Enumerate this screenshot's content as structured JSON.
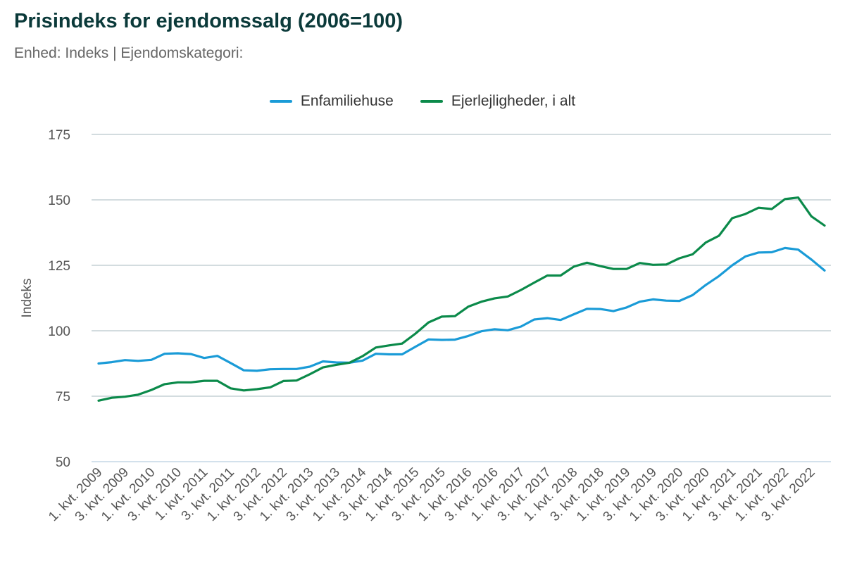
{
  "colors": {
    "enfamiliehuse": "#1a9bd7",
    "ejerlejligheder": "#0b8a4a",
    "grid": "#b9c6cc",
    "baseline": "#b9cfe0"
  },
  "chart_data": {
    "type": "line",
    "title": "Prisindeks for ejendomssalg (2006=100)",
    "subtitle": "Enhed: Indeks | Ejendomskategori:",
    "ylabel": "Indeks",
    "xlabel": "",
    "ylim": [
      50,
      175
    ],
    "yticks": [
      50,
      75,
      100,
      125,
      150,
      175
    ],
    "grid": true,
    "legend_position": "top-center",
    "categories": [
      "1. kvt. 2009",
      "2. kvt. 2009",
      "3. kvt. 2009",
      "4. kvt. 2009",
      "1. kvt. 2010",
      "2. kvt. 2010",
      "3. kvt. 2010",
      "4. kvt. 2010",
      "1. kvt. 2011",
      "2. kvt. 2011",
      "3. kvt. 2011",
      "4. kvt. 2011",
      "1. kvt. 2012",
      "2. kvt. 2012",
      "3. kvt. 2012",
      "4. kvt. 2012",
      "1. kvt. 2013",
      "2. kvt. 2013",
      "3. kvt. 2013",
      "4. kvt. 2013",
      "1. kvt. 2014",
      "2. kvt. 2014",
      "3. kvt. 2014",
      "4. kvt. 2014",
      "1. kvt. 2015",
      "2. kvt. 2015",
      "3. kvt. 2015",
      "4. kvt. 2015",
      "1. kvt. 2016",
      "2. kvt. 2016",
      "3. kvt. 2016",
      "4. kvt. 2016",
      "1. kvt. 2017",
      "2. kvt. 2017",
      "3. kvt. 2017",
      "4. kvt. 2017",
      "1. kvt. 2018",
      "2. kvt. 2018",
      "3. kvt. 2018",
      "4. kvt. 2018",
      "1. kvt. 2019",
      "2. kvt. 2019",
      "3. kvt. 2019",
      "4. kvt. 2019",
      "1. kvt. 2020",
      "2. kvt. 2020",
      "3. kvt. 2020",
      "4. kvt. 2020",
      "1. kvt. 2021",
      "2. kvt. 2021",
      "3. kvt. 2021",
      "4. kvt. 2021",
      "1. kvt. 2022",
      "2. kvt. 2022",
      "3. kvt. 2022",
      "4. kvt. 2022"
    ],
    "visible_tick_labels": [
      "1. kvt. 2009",
      "3. kvt. 2009",
      "1. kvt. 2010",
      "3. kvt. 2010",
      "1. kvt. 2011",
      "3. kvt. 2011",
      "1. kvt. 2012",
      "3. kvt. 2012",
      "1. kvt. 2013",
      "3. kvt. 2013",
      "1. kvt. 2014",
      "3. kvt. 2014",
      "1. kvt. 2015",
      "3. kvt. 2015",
      "1. kvt. 2016",
      "3. kvt. 2016",
      "1. kvt. 2017",
      "3. kvt. 2017",
      "1. kvt. 2018",
      "3. kvt. 2018",
      "1. kvt. 2019",
      "3. kvt. 2019",
      "1. kvt. 2020",
      "3. kvt. 2020",
      "1. kvt. 2021",
      "3. kvt. 2021",
      "1. kvt. 2022",
      "3. kvt. 2022"
    ],
    "series": [
      {
        "name": "Enfamiliehuse",
        "color_key": "enfamiliehuse",
        "values": [
          87.5,
          88.0,
          88.8,
          88.5,
          88.9,
          91.2,
          91.4,
          91.1,
          89.6,
          90.4,
          87.7,
          84.9,
          84.7,
          85.3,
          85.4,
          85.4,
          86.3,
          88.3,
          87.9,
          87.8,
          88.6,
          91.2,
          91.0,
          91.0,
          93.9,
          96.7,
          96.5,
          96.6,
          98.0,
          99.8,
          100.6,
          100.2,
          101.6,
          104.3,
          104.8,
          104.1,
          106.3,
          108.4,
          108.3,
          107.5,
          108.9,
          111.1,
          112.0,
          111.5,
          111.4,
          113.6,
          117.5,
          120.9,
          125.0,
          128.4,
          129.9,
          130.0,
          131.6,
          131.0,
          127.2,
          123.0
        ]
      },
      {
        "name": "Ejerlejligheder, i alt",
        "color_key": "ejerlejligheder",
        "values": [
          73.3,
          74.4,
          74.8,
          75.6,
          77.4,
          79.6,
          80.3,
          80.3,
          80.9,
          80.9,
          78.0,
          77.2,
          77.7,
          78.4,
          80.8,
          81.0,
          83.4,
          86.0,
          87.0,
          87.8,
          90.3,
          93.6,
          94.4,
          95.1,
          98.9,
          103.2,
          105.4,
          105.6,
          109.2,
          111.1,
          112.4,
          113.1,
          115.6,
          118.4,
          121.1,
          121.1,
          124.5,
          126.0,
          124.7,
          123.6,
          123.6,
          125.9,
          125.2,
          125.3,
          127.7,
          129.2,
          133.7,
          136.3,
          143.0,
          144.6,
          147.0,
          146.5,
          150.3,
          150.9,
          143.7,
          140.2
        ]
      }
    ]
  }
}
